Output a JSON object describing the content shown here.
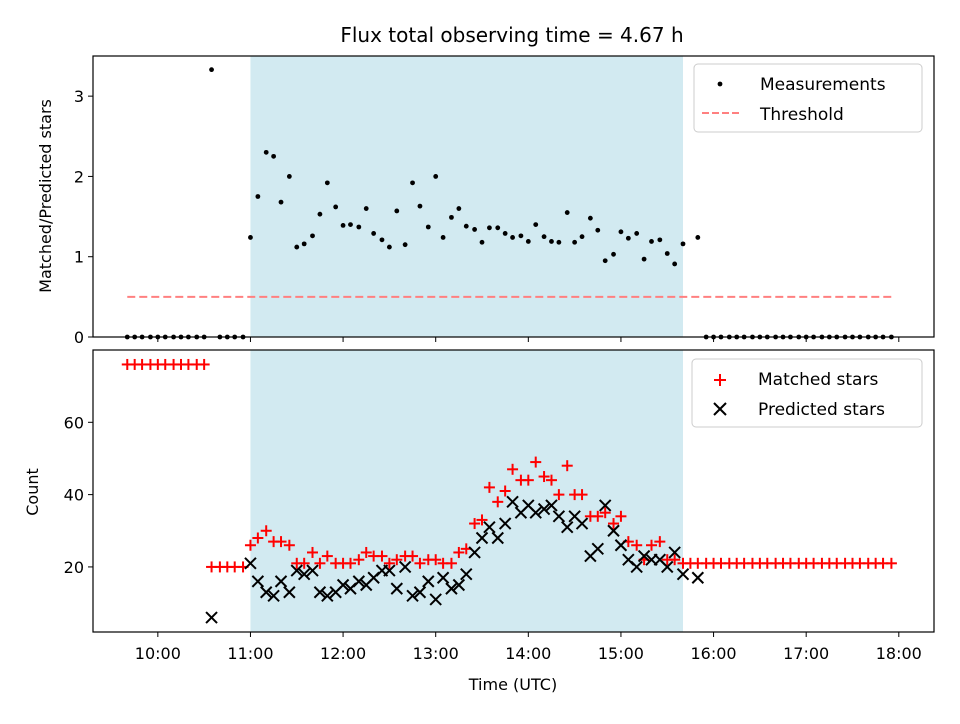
{
  "chart_data": [
    {
      "type": "scatter",
      "title": "Flux total observing time = 4.67 h",
      "xlabel": "",
      "ylabel": "Matched/Predicted stars",
      "xlim": [
        9.3,
        18.38
      ],
      "ylim": [
        0,
        3.5
      ],
      "yticks": [
        0,
        1,
        2,
        3
      ],
      "ytick_labels": [
        "0",
        "1",
        "2",
        "3"
      ],
      "shaded_region": {
        "x_start": 11.0,
        "x_end": 15.67,
        "color": "#add8e6"
      },
      "legend": {
        "position": "top-right",
        "entries": [
          "Measurements",
          "Threshold"
        ]
      },
      "series": [
        {
          "name": "Measurements",
          "marker": "dot",
          "color": "#000000",
          "points": [
            [
              9.67,
              0
            ],
            [
              9.75,
              0
            ],
            [
              9.83,
              0
            ],
            [
              9.92,
              0
            ],
            [
              10.0,
              0
            ],
            [
              10.08,
              0
            ],
            [
              10.17,
              0
            ],
            [
              10.25,
              0
            ],
            [
              10.33,
              0
            ],
            [
              10.42,
              0
            ],
            [
              10.5,
              0
            ],
            [
              10.58,
              3.33
            ],
            [
              10.67,
              0
            ],
            [
              10.75,
              0
            ],
            [
              10.83,
              0
            ],
            [
              10.92,
              0
            ],
            [
              11.0,
              1.24
            ],
            [
              11.08,
              1.75
            ],
            [
              11.17,
              2.3
            ],
            [
              11.25,
              2.25
            ],
            [
              11.33,
              1.68
            ],
            [
              11.42,
              2.0
            ],
            [
              11.5,
              1.12
            ],
            [
              11.58,
              1.16
            ],
            [
              11.67,
              1.26
            ],
            [
              11.75,
              1.53
            ],
            [
              11.83,
              1.92
            ],
            [
              11.92,
              1.62
            ],
            [
              12.0,
              1.39
            ],
            [
              12.08,
              1.4
            ],
            [
              12.17,
              1.37
            ],
            [
              12.25,
              1.6
            ],
            [
              12.33,
              1.29
            ],
            [
              12.42,
              1.21
            ],
            [
              12.5,
              1.12
            ],
            [
              12.58,
              1.57
            ],
            [
              12.67,
              1.15
            ],
            [
              12.75,
              1.92
            ],
            [
              12.83,
              1.63
            ],
            [
              12.92,
              1.37
            ],
            [
              13.0,
              2.0
            ],
            [
              13.08,
              1.24
            ],
            [
              13.17,
              1.49
            ],
            [
              13.25,
              1.6
            ],
            [
              13.33,
              1.38
            ],
            [
              13.42,
              1.34
            ],
            [
              13.5,
              1.18
            ],
            [
              13.58,
              1.36
            ],
            [
              13.67,
              1.36
            ],
            [
              13.75,
              1.29
            ],
            [
              13.83,
              1.24
            ],
            [
              13.92,
              1.26
            ],
            [
              14.0,
              1.19
            ],
            [
              14.08,
              1.4
            ],
            [
              14.17,
              1.25
            ],
            [
              14.25,
              1.19
            ],
            [
              14.33,
              1.18
            ],
            [
              14.42,
              1.55
            ],
            [
              14.5,
              1.18
            ],
            [
              14.58,
              1.25
            ],
            [
              14.67,
              1.48
            ],
            [
              14.75,
              1.33
            ],
            [
              14.83,
              0.95
            ],
            [
              14.92,
              1.03
            ],
            [
              15.0,
              1.31
            ],
            [
              15.08,
              1.23
            ],
            [
              15.17,
              1.29
            ],
            [
              15.25,
              0.97
            ],
            [
              15.33,
              1.19
            ],
            [
              15.42,
              1.21
            ],
            [
              15.5,
              1.04
            ],
            [
              15.58,
              0.91
            ],
            [
              15.67,
              1.16
            ],
            [
              15.83,
              1.24
            ],
            [
              15.92,
              0
            ],
            [
              16.0,
              0
            ],
            [
              16.08,
              0
            ],
            [
              16.17,
              0
            ],
            [
              16.25,
              0
            ],
            [
              16.33,
              0
            ],
            [
              16.42,
              0
            ],
            [
              16.5,
              0
            ],
            [
              16.58,
              0
            ],
            [
              16.67,
              0
            ],
            [
              16.75,
              0
            ],
            [
              16.83,
              0
            ],
            [
              16.92,
              0
            ],
            [
              17.0,
              0
            ],
            [
              17.08,
              0
            ],
            [
              17.17,
              0
            ],
            [
              17.25,
              0
            ],
            [
              17.33,
              0
            ],
            [
              17.42,
              0
            ],
            [
              17.5,
              0
            ],
            [
              17.58,
              0
            ],
            [
              17.67,
              0
            ],
            [
              17.75,
              0
            ],
            [
              17.83,
              0
            ],
            [
              17.92,
              0
            ]
          ]
        },
        {
          "name": "Threshold",
          "marker": "dashed-line",
          "color": "#ff8080",
          "points": [
            [
              9.67,
              0.5
            ],
            [
              17.92,
              0.5
            ]
          ]
        }
      ]
    },
    {
      "type": "scatter",
      "title": "",
      "xlabel": "Time (UTC)",
      "ylabel": "Count",
      "xlim": [
        9.3,
        18.38
      ],
      "ylim": [
        2,
        80
      ],
      "xticks": [
        10,
        11,
        12,
        13,
        14,
        15,
        16,
        17,
        18
      ],
      "xtick_labels": [
        "10:00",
        "11:00",
        "12:00",
        "13:00",
        "14:00",
        "15:00",
        "16:00",
        "17:00",
        "18:00"
      ],
      "yticks": [
        20,
        40,
        60
      ],
      "ytick_labels": [
        "20",
        "40",
        "60"
      ],
      "shaded_region": {
        "x_start": 11.0,
        "x_end": 15.67,
        "color": "#add8e6"
      },
      "legend": {
        "position": "top-right",
        "entries": [
          "Matched stars",
          "Predicted stars"
        ]
      },
      "series": [
        {
          "name": "Matched stars",
          "marker": "plus",
          "color": "#ff0000",
          "points": [
            [
              9.67,
              76
            ],
            [
              9.75,
              76
            ],
            [
              9.83,
              76
            ],
            [
              9.92,
              76
            ],
            [
              10.0,
              76
            ],
            [
              10.08,
              76
            ],
            [
              10.17,
              76
            ],
            [
              10.25,
              76
            ],
            [
              10.33,
              76
            ],
            [
              10.42,
              76
            ],
            [
              10.5,
              76
            ],
            [
              10.58,
              20
            ],
            [
              10.67,
              20
            ],
            [
              10.75,
              20
            ],
            [
              10.83,
              20
            ],
            [
              10.92,
              20
            ],
            [
              11.0,
              26
            ],
            [
              11.08,
              28
            ],
            [
              11.17,
              30
            ],
            [
              11.25,
              27
            ],
            [
              11.33,
              27
            ],
            [
              11.42,
              26
            ],
            [
              11.5,
              21
            ],
            [
              11.58,
              21
            ],
            [
              11.67,
              24
            ],
            [
              11.75,
              21
            ],
            [
              11.83,
              23
            ],
            [
              11.92,
              21
            ],
            [
              12.0,
              21
            ],
            [
              12.08,
              21
            ],
            [
              12.17,
              22
            ],
            [
              12.25,
              24
            ],
            [
              12.33,
              23
            ],
            [
              12.42,
              23
            ],
            [
              12.5,
              21
            ],
            [
              12.58,
              22
            ],
            [
              12.67,
              23
            ],
            [
              12.75,
              23
            ],
            [
              12.83,
              21
            ],
            [
              12.92,
              22
            ],
            [
              13.0,
              22
            ],
            [
              13.08,
              21
            ],
            [
              13.17,
              21
            ],
            [
              13.25,
              24
            ],
            [
              13.33,
              25
            ],
            [
              13.42,
              32
            ],
            [
              13.5,
              33
            ],
            [
              13.58,
              42
            ],
            [
              13.67,
              38
            ],
            [
              13.75,
              41
            ],
            [
              13.83,
              47
            ],
            [
              13.92,
              44
            ],
            [
              14.0,
              44
            ],
            [
              14.08,
              49
            ],
            [
              14.17,
              45
            ],
            [
              14.25,
              44
            ],
            [
              14.33,
              40
            ],
            [
              14.42,
              48
            ],
            [
              14.5,
              40
            ],
            [
              14.58,
              40
            ],
            [
              14.67,
              34
            ],
            [
              14.75,
              34
            ],
            [
              14.83,
              35
            ],
            [
              14.92,
              32
            ],
            [
              15.0,
              34
            ],
            [
              15.08,
              27
            ],
            [
              15.17,
              26
            ],
            [
              15.25,
              22
            ],
            [
              15.33,
              26
            ],
            [
              15.42,
              27
            ],
            [
              15.5,
              22
            ],
            [
              15.58,
              22
            ],
            [
              15.67,
              21
            ],
            [
              15.75,
              21
            ],
            [
              15.83,
              21
            ],
            [
              15.92,
              21
            ],
            [
              16.0,
              21
            ],
            [
              16.08,
              21
            ],
            [
              16.17,
              21
            ],
            [
              16.25,
              21
            ],
            [
              16.33,
              21
            ],
            [
              16.42,
              21
            ],
            [
              16.5,
              21
            ],
            [
              16.58,
              21
            ],
            [
              16.67,
              21
            ],
            [
              16.75,
              21
            ],
            [
              16.83,
              21
            ],
            [
              16.92,
              21
            ],
            [
              17.0,
              21
            ],
            [
              17.08,
              21
            ],
            [
              17.17,
              21
            ],
            [
              17.25,
              21
            ],
            [
              17.33,
              21
            ],
            [
              17.42,
              21
            ],
            [
              17.5,
              21
            ],
            [
              17.58,
              21
            ],
            [
              17.67,
              21
            ],
            [
              17.75,
              21
            ],
            [
              17.83,
              21
            ],
            [
              17.92,
              21
            ]
          ]
        },
        {
          "name": "Predicted stars",
          "marker": "x",
          "color": "#000000",
          "points": [
            [
              10.58,
              6
            ],
            [
              11.0,
              21
            ],
            [
              11.08,
              16
            ],
            [
              11.17,
              13
            ],
            [
              11.25,
              12
            ],
            [
              11.33,
              16
            ],
            [
              11.42,
              13
            ],
            [
              11.5,
              19
            ],
            [
              11.58,
              18
            ],
            [
              11.67,
              19
            ],
            [
              11.75,
              13
            ],
            [
              11.83,
              12
            ],
            [
              11.92,
              13
            ],
            [
              12.0,
              15
            ],
            [
              12.08,
              14
            ],
            [
              12.17,
              16
            ],
            [
              12.25,
              15
            ],
            [
              12.33,
              17
            ],
            [
              12.42,
              19
            ],
            [
              12.5,
              19
            ],
            [
              12.58,
              14
            ],
            [
              12.67,
              20
            ],
            [
              12.75,
              12
            ],
            [
              12.83,
              13
            ],
            [
              12.92,
              16
            ],
            [
              13.0,
              11
            ],
            [
              13.08,
              17
            ],
            [
              13.17,
              14
            ],
            [
              13.25,
              15
            ],
            [
              13.33,
              18
            ],
            [
              13.42,
              24
            ],
            [
              13.5,
              28
            ],
            [
              13.58,
              31
            ],
            [
              13.67,
              28
            ],
            [
              13.75,
              32
            ],
            [
              13.83,
              38
            ],
            [
              13.92,
              35
            ],
            [
              14.0,
              37
            ],
            [
              14.08,
              35
            ],
            [
              14.17,
              36
            ],
            [
              14.25,
              37
            ],
            [
              14.33,
              34
            ],
            [
              14.42,
              31
            ],
            [
              14.5,
              34
            ],
            [
              14.58,
              32
            ],
            [
              14.67,
              23
            ],
            [
              14.75,
              25
            ],
            [
              14.83,
              37
            ],
            [
              14.92,
              30
            ],
            [
              15.0,
              26
            ],
            [
              15.08,
              22
            ],
            [
              15.17,
              20
            ],
            [
              15.25,
              23
            ],
            [
              15.33,
              22
            ],
            [
              15.42,
              22
            ],
            [
              15.5,
              20
            ],
            [
              15.58,
              24
            ],
            [
              15.67,
              18
            ],
            [
              15.83,
              17
            ]
          ]
        }
      ]
    }
  ]
}
